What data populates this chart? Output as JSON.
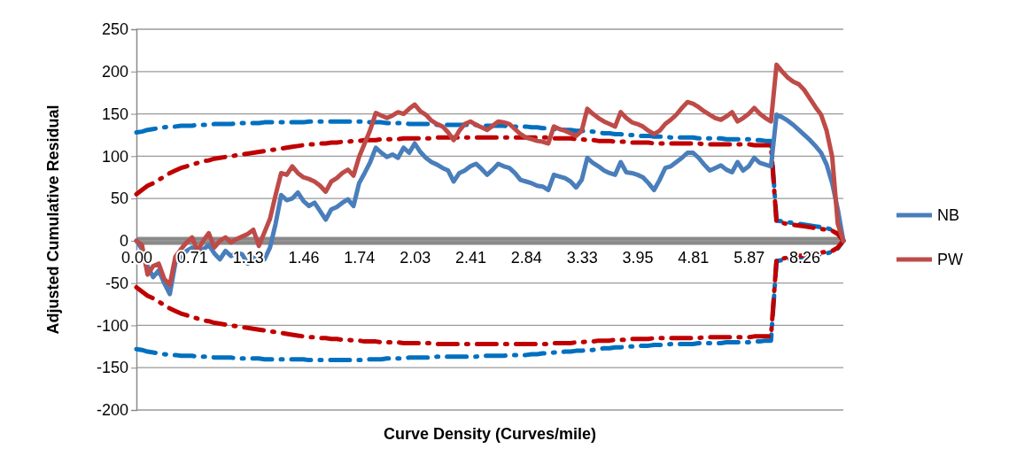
{
  "chart_data": {
    "type": "line",
    "xlabel": "Curve Density (Curves/mile)",
    "ylabel": "Adjusted Cumulative Residual",
    "categories": [
      "0.00",
      null,
      null,
      null,
      null,
      null,
      null,
      null,
      null,
      null,
      "0.71",
      null,
      null,
      null,
      null,
      null,
      null,
      null,
      null,
      null,
      "1.13",
      null,
      null,
      null,
      null,
      null,
      null,
      null,
      null,
      null,
      "1.46",
      null,
      null,
      null,
      null,
      null,
      null,
      null,
      null,
      null,
      "1.74",
      null,
      null,
      null,
      null,
      null,
      null,
      null,
      null,
      null,
      "2.03",
      null,
      null,
      null,
      null,
      null,
      null,
      null,
      null,
      null,
      "2.41",
      null,
      null,
      null,
      null,
      null,
      null,
      null,
      null,
      null,
      "2.84",
      null,
      null,
      null,
      null,
      null,
      null,
      null,
      null,
      null,
      "3.33",
      null,
      null,
      null,
      null,
      null,
      null,
      null,
      null,
      null,
      "3.95",
      null,
      null,
      null,
      null,
      null,
      null,
      null,
      null,
      null,
      "4.81",
      null,
      null,
      null,
      null,
      null,
      null,
      null,
      null,
      null,
      "5.87",
      null,
      null,
      null,
      null,
      null,
      null,
      null,
      null,
      null,
      "8.26",
      null,
      null,
      null,
      null,
      null,
      null,
      null
    ],
    "ylim": [
      -200,
      250
    ],
    "yticks": [
      -200,
      -150,
      -100,
      -50,
      0,
      50,
      100,
      150,
      200,
      250
    ],
    "grid": "y",
    "legend": "right",
    "marker": "none",
    "series": [
      {
        "color": "#0070c0",
        "line_style": "dashed",
        "values": [
          128,
          129,
          131,
          132,
          133,
          134,
          135,
          135,
          136,
          136,
          136,
          137,
          137,
          137,
          138,
          138,
          138,
          138,
          139,
          139,
          139,
          139,
          139,
          140,
          140,
          140,
          140,
          140,
          140,
          140,
          140,
          141,
          141,
          141,
          141,
          141,
          141,
          141,
          141,
          141,
          141,
          141,
          140,
          140,
          140,
          139,
          139,
          139,
          139,
          138,
          138,
          138,
          138,
          138,
          137,
          137,
          137,
          137,
          137,
          137,
          137,
          137,
          136,
          136,
          136,
          136,
          136,
          135,
          135,
          135,
          135,
          134,
          134,
          133,
          133,
          132,
          132,
          131,
          131,
          130,
          130,
          129,
          129,
          128,
          127,
          127,
          126,
          126,
          125,
          125,
          124,
          124,
          124,
          123,
          123,
          123,
          122,
          122,
          122,
          122,
          122,
          121,
          121,
          121,
          121,
          121,
          120,
          120,
          120,
          120,
          120,
          119,
          119,
          118,
          118,
          24,
          23,
          22,
          21,
          20,
          19,
          18,
          17,
          16,
          15,
          13,
          9,
          0
        ]
      },
      {
        "color": "#0070c0",
        "line_style": "dashed",
        "values": [
          -128,
          -129,
          -131,
          -132,
          -133,
          -134,
          -135,
          -135,
          -136,
          -136,
          -136,
          -137,
          -137,
          -137,
          -138,
          -138,
          -138,
          -138,
          -139,
          -139,
          -139,
          -139,
          -139,
          -140,
          -140,
          -140,
          -140,
          -140,
          -140,
          -140,
          -140,
          -141,
          -141,
          -141,
          -141,
          -141,
          -141,
          -141,
          -141,
          -141,
          -141,
          -141,
          -140,
          -140,
          -140,
          -139,
          -139,
          -139,
          -139,
          -138,
          -138,
          -138,
          -138,
          -138,
          -137,
          -137,
          -137,
          -137,
          -137,
          -137,
          -137,
          -137,
          -136,
          -136,
          -136,
          -136,
          -136,
          -135,
          -135,
          -135,
          -135,
          -134,
          -134,
          -133,
          -133,
          -132,
          -132,
          -131,
          -131,
          -130,
          -130,
          -129,
          -129,
          -128,
          -127,
          -127,
          -126,
          -126,
          -125,
          -125,
          -124,
          -124,
          -124,
          -123,
          -123,
          -123,
          -122,
          -122,
          -122,
          -122,
          -122,
          -121,
          -121,
          -121,
          -121,
          -121,
          -120,
          -120,
          -120,
          -120,
          -120,
          -119,
          -119,
          -118,
          -118,
          -24,
          -23,
          -22,
          -21,
          -20,
          -19,
          -18,
          -17,
          -16,
          -15,
          -13,
          -9,
          0
        ]
      },
      {
        "color": "#c00000",
        "line_style": "dashed",
        "values": [
          55,
          60,
          65,
          68,
          72,
          76,
          80,
          83,
          86,
          88,
          90,
          92,
          94,
          95,
          97,
          98,
          99,
          100,
          101,
          102,
          103,
          104,
          105,
          106,
          107,
          108,
          109,
          110,
          111,
          112,
          113,
          114,
          114,
          115,
          115,
          116,
          116,
          117,
          117,
          118,
          118,
          119,
          119,
          119,
          120,
          120,
          120,
          120,
          121,
          121,
          121,
          121,
          121,
          121,
          122,
          122,
          122,
          122,
          122,
          122,
          122,
          122,
          122,
          122,
          122,
          122,
          122,
          122,
          122,
          122,
          122,
          122,
          122,
          122,
          122,
          121,
          121,
          121,
          121,
          120,
          120,
          119,
          119,
          118,
          118,
          118,
          117,
          117,
          117,
          116,
          116,
          116,
          116,
          115,
          115,
          115,
          115,
          115,
          115,
          115,
          115,
          115,
          114,
          114,
          114,
          114,
          114,
          114,
          114,
          114,
          114,
          113,
          113,
          113,
          113,
          22,
          21,
          20,
          19,
          18,
          17,
          16,
          15,
          14,
          13,
          12,
          8,
          0
        ]
      },
      {
        "color": "#c00000",
        "line_style": "dashed",
        "values": [
          -55,
          -60,
          -65,
          -68,
          -72,
          -76,
          -80,
          -83,
          -86,
          -88,
          -90,
          -92,
          -94,
          -95,
          -97,
          -98,
          -99,
          -100,
          -101,
          -102,
          -103,
          -104,
          -105,
          -106,
          -107,
          -108,
          -109,
          -110,
          -111,
          -112,
          -113,
          -114,
          -114,
          -115,
          -115,
          -116,
          -116,
          -117,
          -117,
          -118,
          -118,
          -119,
          -119,
          -119,
          -120,
          -120,
          -120,
          -120,
          -121,
          -121,
          -121,
          -121,
          -121,
          -121,
          -122,
          -122,
          -122,
          -122,
          -122,
          -122,
          -122,
          -122,
          -122,
          -122,
          -122,
          -122,
          -122,
          -122,
          -122,
          -122,
          -122,
          -122,
          -122,
          -122,
          -122,
          -121,
          -121,
          -121,
          -121,
          -120,
          -120,
          -119,
          -119,
          -118,
          -118,
          -118,
          -117,
          -117,
          -117,
          -116,
          -116,
          -116,
          -116,
          -115,
          -115,
          -115,
          -115,
          -115,
          -115,
          -115,
          -115,
          -115,
          -114,
          -114,
          -114,
          -114,
          -114,
          -114,
          -114,
          -114,
          -114,
          -113,
          -113,
          -113,
          -113,
          -22,
          -21,
          -20,
          -19,
          -18,
          -17,
          -16,
          -15,
          -14,
          -13,
          -12,
          -8,
          0
        ]
      },
      {
        "name": "NB",
        "color": "#4a7ebb",
        "line_style": "solid",
        "values": [
          0,
          -10,
          -30,
          -43,
          -35,
          -50,
          -63,
          -26,
          -20,
          -12,
          -8,
          -16,
          -10,
          -5,
          -15,
          -22,
          -12,
          -18,
          -14,
          -16,
          -27,
          -20,
          -24,
          -22,
          -8,
          20,
          54,
          48,
          50,
          57,
          47,
          41,
          45,
          35,
          25,
          37,
          40,
          45,
          49,
          41,
          68,
          80,
          93,
          110,
          104,
          99,
          102,
          98,
          110,
          104,
          115,
          105,
          98,
          93,
          90,
          86,
          83,
          70,
          80,
          83,
          88,
          91,
          85,
          78,
          84,
          91,
          88,
          86,
          80,
          72,
          70,
          68,
          65,
          64,
          60,
          78,
          76,
          74,
          70,
          63,
          72,
          98,
          92,
          88,
          83,
          80,
          78,
          93,
          81,
          80,
          78,
          75,
          68,
          60,
          72,
          86,
          88,
          93,
          98,
          104,
          104,
          98,
          90,
          83,
          86,
          89,
          84,
          81,
          93,
          83,
          88,
          98,
          92,
          90,
          88,
          149,
          146,
          142,
          137,
          131,
          125,
          119,
          112,
          104,
          90,
          68,
          37,
          0
        ]
      },
      {
        "name": "PW",
        "color": "#be4b48",
        "line_style": "solid",
        "values": [
          0,
          -5,
          -40,
          -30,
          -27,
          -45,
          -52,
          -19,
          -10,
          -2,
          4,
          -12,
          0,
          9,
          -8,
          0,
          4,
          -2,
          2,
          5,
          8,
          13,
          -6,
          10,
          26,
          54,
          80,
          78,
          88,
          80,
          75,
          73,
          70,
          65,
          58,
          70,
          74,
          80,
          84,
          77,
          99,
          115,
          131,
          151,
          148,
          145,
          148,
          152,
          150,
          156,
          161,
          153,
          149,
          142,
          138,
          135,
          128,
          119,
          130,
          138,
          141,
          137,
          134,
          131,
          136,
          141,
          140,
          138,
          132,
          126,
          122,
          120,
          118,
          117,
          115,
          135,
          132,
          130,
          127,
          124,
          130,
          156,
          150,
          145,
          141,
          138,
          135,
          152,
          145,
          140,
          138,
          135,
          130,
          126,
          130,
          138,
          143,
          149,
          157,
          164,
          162,
          158,
          153,
          149,
          145,
          143,
          147,
          152,
          141,
          145,
          150,
          157,
          150,
          145,
          141,
          208,
          200,
          193,
          188,
          185,
          178,
          168,
          158,
          149,
          130,
          99,
          20,
          0
        ]
      }
    ]
  }
}
